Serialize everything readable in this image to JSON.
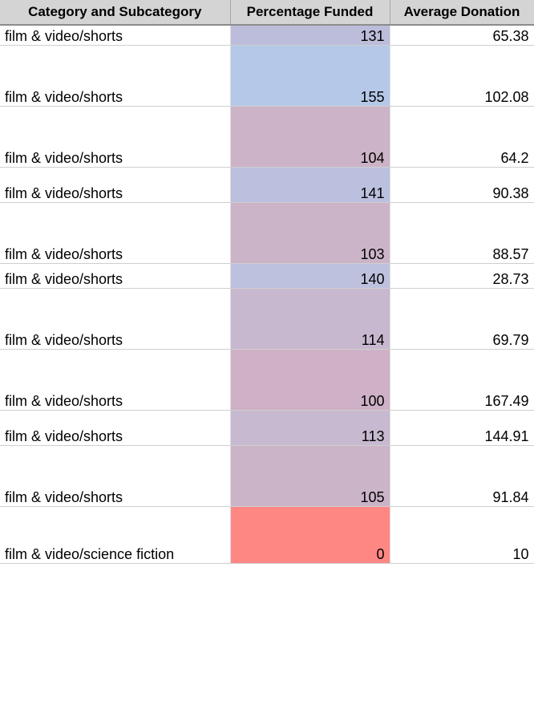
{
  "headers": {
    "category": "Category and Subcategory",
    "percent": "Percentage Funded",
    "donation": "Average Donation"
  },
  "rows": [
    {
      "category": "film & video/shorts",
      "percent": "131",
      "donation": "65.38",
      "color": "#bcbcdb",
      "size": "h1"
    },
    {
      "category": "film & video/shorts",
      "percent": "155",
      "donation": "102.08",
      "color": "#b5c8e8",
      "size": "h2"
    },
    {
      "category": "film & video/shorts",
      "percent": "104",
      "donation": "64.2",
      "color": "#ccb3c7",
      "size": "h2"
    },
    {
      "category": "film & video/shorts",
      "percent": "141",
      "donation": "90.38",
      "color": "#bcc0df",
      "size": "h3"
    },
    {
      "category": "film & video/shorts",
      "percent": "103",
      "donation": "88.57",
      "color": "#ccb4c8",
      "size": "h2"
    },
    {
      "category": "film & video/shorts",
      "percent": "140",
      "donation": "28.73",
      "color": "#bec1de",
      "size": "h4"
    },
    {
      "category": "film & video/shorts",
      "percent": "114",
      "donation": "69.79",
      "color": "#c7b8cf",
      "size": "h2"
    },
    {
      "category": "film & video/shorts",
      "percent": "100",
      "donation": "167.49",
      "color": "#ceb1c6",
      "size": "h2"
    },
    {
      "category": "film & video/shorts",
      "percent": "113",
      "donation": "144.91",
      "color": "#c7b9cf",
      "size": "h3"
    },
    {
      "category": "film & video/shorts",
      "percent": "105",
      "donation": "91.84",
      "color": "#cbb3c8",
      "size": "h2"
    },
    {
      "category": "film & video/science fiction",
      "percent": "0",
      "donation": "10",
      "color": "#ff8783",
      "size": "h5"
    }
  ]
}
